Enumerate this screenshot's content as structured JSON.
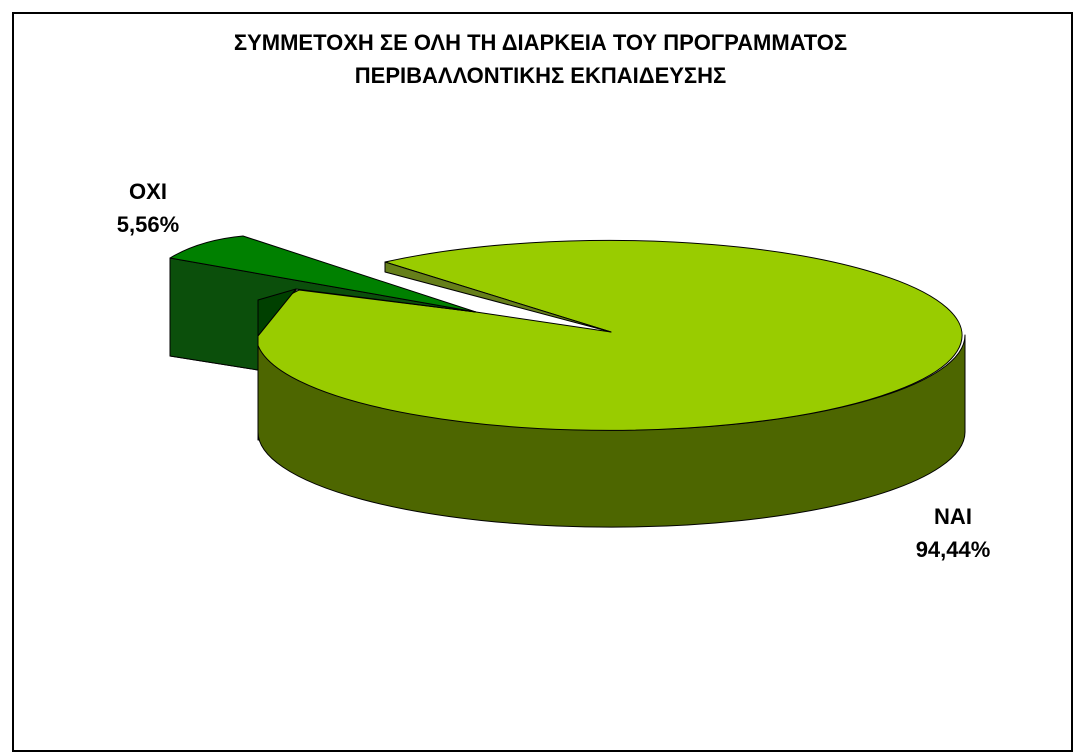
{
  "chart_data": {
    "type": "pie",
    "title_lines": [
      "ΣΥΜΜΕΤΟΧΗ ΣΕ ΟΛΗ ΤΗ ΔΙΑΡΚΕΙΑ ΤΟΥ ΠΡΟΓΡΑΜΜΑΤΟΣ",
      "ΠΕΡΙΒΑΛΛΟΝΤΙΚΗΣ ΕΚΠΑΙΔΕΥΣΗΣ"
    ],
    "three_d": true,
    "legend": "none",
    "slices": [
      {
        "label": "ΝΑΙ",
        "value": 94.44,
        "value_text": "94,44%",
        "exploded": false,
        "color_top": "#99cc00",
        "color_side": "#4d6600"
      },
      {
        "label": "ΟΧΙ",
        "value": 5.56,
        "value_text": "5,56%",
        "exploded": true,
        "color_top": "#008000",
        "color_side": "#004000"
      }
    ]
  }
}
